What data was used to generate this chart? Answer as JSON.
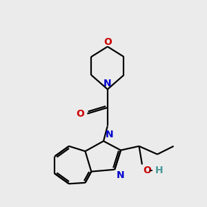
{
  "background_color": "#ebebeb",
  "bond_color": "#000000",
  "N_color": "#0000cc",
  "O_color": "#cc0000",
  "H_color": "#4a9999",
  "figsize": [
    3.0,
    3.0
  ],
  "dpi": 100,
  "xlim": [
    0,
    10
  ],
  "ylim": [
    0,
    10
  ],
  "lw": 1.6,
  "fs": 10
}
